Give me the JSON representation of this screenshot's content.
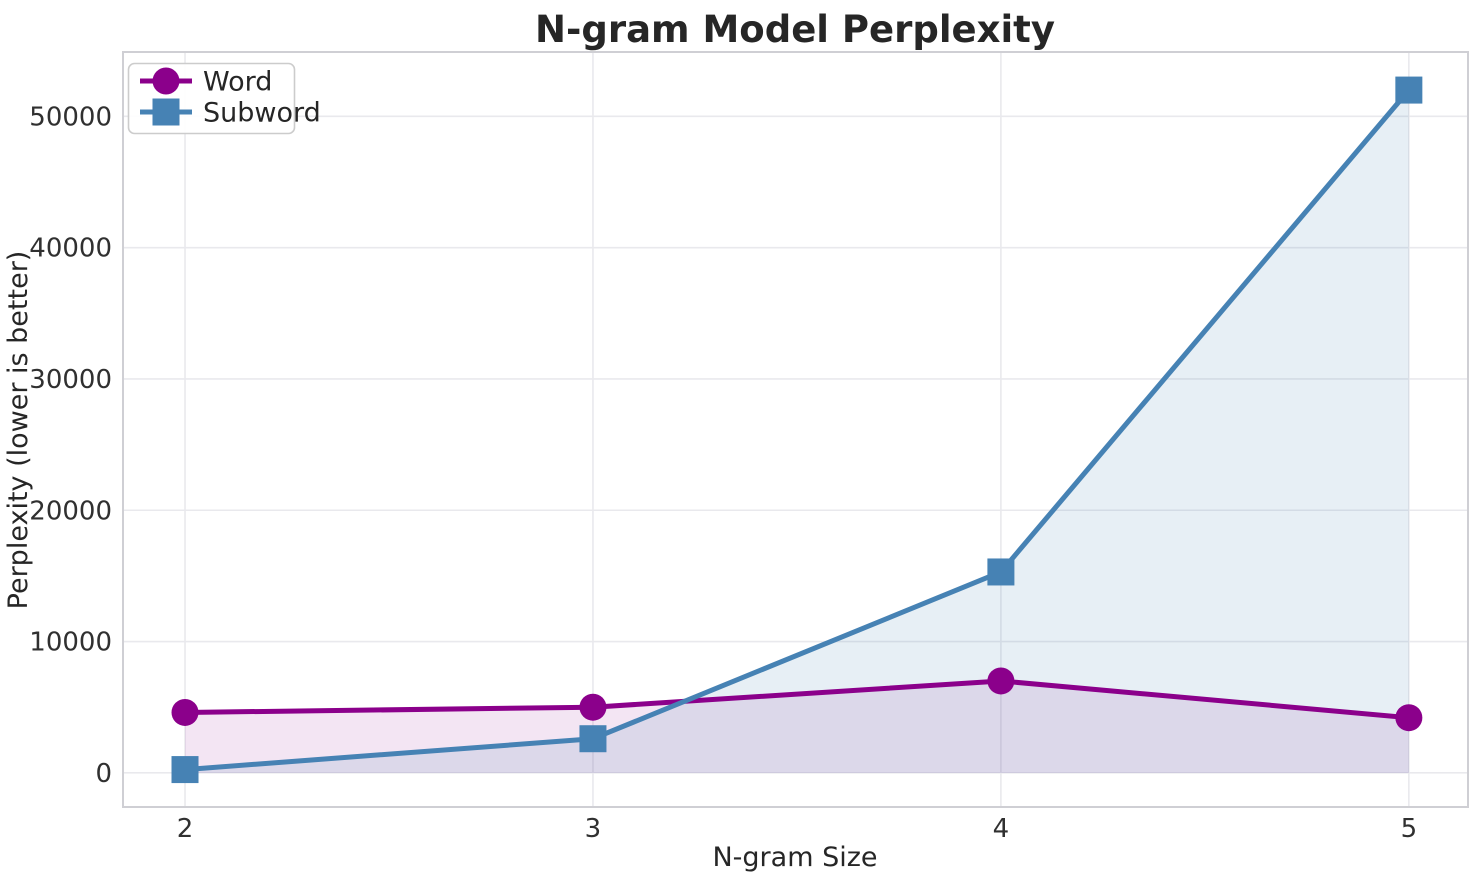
{
  "chart_data": {
    "type": "line",
    "title": "N-gram Model Perplexity",
    "xlabel": "N-gram Size",
    "ylabel": "Perplexity (lower is better)",
    "x": [
      2,
      3,
      4,
      5
    ],
    "x_tick_labels": [
      "2",
      "3",
      "4",
      "5"
    ],
    "y_ticks": [
      0,
      10000,
      20000,
      30000,
      40000,
      50000
    ],
    "y_tick_labels": [
      "0",
      "10000",
      "20000",
      "30000",
      "40000",
      "50000"
    ],
    "xlim": [
      1.848,
      5.145
    ],
    "ylim": [
      -2600,
      54900
    ],
    "grid": true,
    "legend_position": "upper left",
    "fill_to_zero": true,
    "series": [
      {
        "name": "Word",
        "marker": "circle",
        "color": "#8B008B",
        "fill_opacity": 0.1,
        "values": [
          4600,
          5000,
          7000,
          4200
        ]
      },
      {
        "name": "Subword",
        "marker": "square",
        "color": "#4682B4",
        "fill_opacity": 0.13,
        "values": [
          250,
          2600,
          15300,
          52000
        ]
      }
    ],
    "colors": {
      "grid": "#e9e9ed",
      "frame": "#cfcfd4",
      "text": "#262626",
      "background": "#ffffff"
    }
  }
}
